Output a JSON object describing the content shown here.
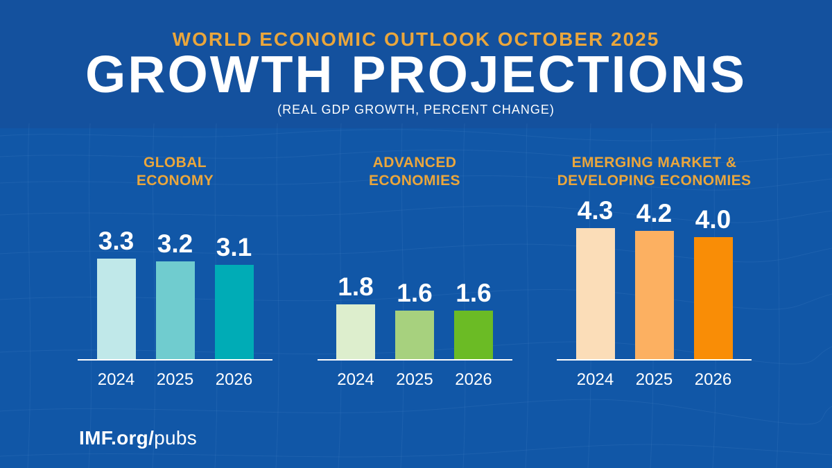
{
  "header": {
    "kicker": "WORLD ECONOMIC OUTLOOK OCTOBER 2025",
    "title": "GROWTH PROJECTIONS",
    "subtitle": "(REAL GDP GROWTH, PERCENT CHANGE)"
  },
  "footer": {
    "brand_bold": "IMF.org/",
    "brand_light": "pubs"
  },
  "colors": {
    "background_top": "#14519E",
    "background_main": "#1157A7",
    "accent_gold": "#EAA63C",
    "text_white": "#FFFFFF",
    "axis_line": "#FFFFFF",
    "mesh_line": "#5B93D6"
  },
  "chart_data": {
    "type": "bar",
    "title": "GROWTH PROJECTIONS",
    "subtitle": "(REAL GDP GROWTH, PERCENT CHANGE)",
    "unit": "percent change",
    "categories": [
      "2024",
      "2025",
      "2026"
    ],
    "ylim": [
      0,
      4.5
    ],
    "grid": false,
    "legend": false,
    "value_labels": "above bars",
    "series": [
      {
        "name": "GLOBAL ECONOMY",
        "label_lines": [
          "GLOBAL",
          "ECONOMY"
        ],
        "values": [
          3.3,
          3.2,
          3.1
        ],
        "values_display": [
          "3.3",
          "3.2",
          "3.1"
        ],
        "bar_colors": [
          "#C0E8E9",
          "#70CCCF",
          "#00ACB6"
        ]
      },
      {
        "name": "ADVANCED ECONOMIES",
        "label_lines": [
          "ADVANCED",
          "ECONOMIES"
        ],
        "values": [
          1.8,
          1.6,
          1.6
        ],
        "values_display": [
          "1.8",
          "1.6",
          "1.6"
        ],
        "bar_colors": [
          "#DDEECD",
          "#A7D17E",
          "#6BBB25"
        ]
      },
      {
        "name": "EMERGING MARKET & DEVELOPING ECONOMIES",
        "label_lines": [
          "EMERGING MARKET &",
          "DEVELOPING ECONOMIES"
        ],
        "values": [
          4.3,
          4.2,
          4.0
        ],
        "values_display": [
          "4.3",
          "4.2",
          "4.0"
        ],
        "bar_colors": [
          "#FBDDB8",
          "#FCB061",
          "#F98D06"
        ]
      }
    ]
  }
}
